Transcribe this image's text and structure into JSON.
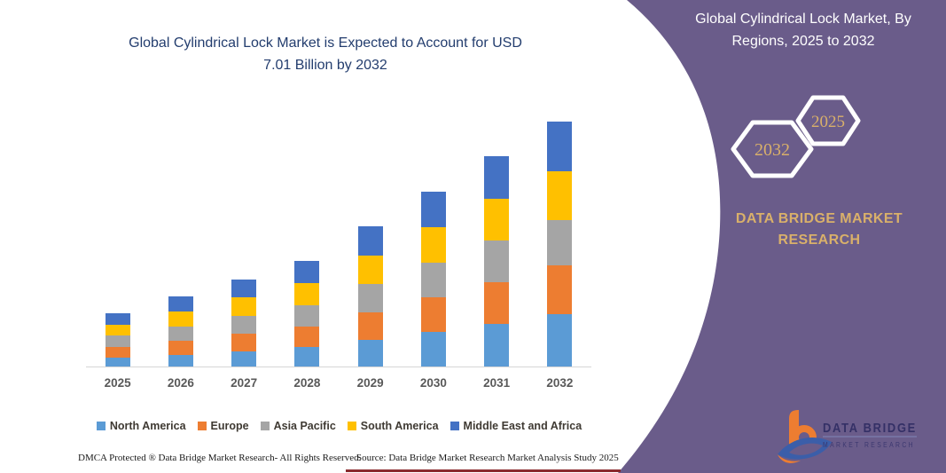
{
  "chart": {
    "title_line1": "Global Cylindrical Lock Market is Expected to Account for USD",
    "title_line2": "7.01 Billion by 2032"
  },
  "chart_data": {
    "type": "bar",
    "stacked": true,
    "title": "Global Cylindrical Lock Market is Expected to Account for USD 7.01 Billion by 2032",
    "units": "USD Billion",
    "categories": [
      "2025",
      "2026",
      "2027",
      "2028",
      "2029",
      "2030",
      "2031",
      "2032"
    ],
    "series": [
      {
        "name": "North America",
        "color": "#5B9BD5",
        "values": [
          0.25,
          0.34,
          0.44,
          0.55,
          0.76,
          0.98,
          1.22,
          1.5
        ]
      },
      {
        "name": "Europe",
        "color": "#ED7D31",
        "values": [
          0.31,
          0.4,
          0.5,
          0.6,
          0.8,
          1.0,
          1.2,
          1.4
        ]
      },
      {
        "name": "Asia Pacific",
        "color": "#A5A5A5",
        "values": [
          0.32,
          0.41,
          0.51,
          0.61,
          0.8,
          1.0,
          1.18,
          1.3
        ]
      },
      {
        "name": "South America",
        "color": "#FFC000",
        "values": [
          0.32,
          0.42,
          0.52,
          0.62,
          0.82,
          1.01,
          1.2,
          1.38
        ]
      },
      {
        "name": "Middle East and Africa",
        "color": "#4472C4",
        "values": [
          0.32,
          0.43,
          0.53,
          0.64,
          0.83,
          1.01,
          1.22,
          1.43
        ]
      }
    ],
    "totals": [
      1.52,
      2.0,
      2.5,
      3.02,
      4.01,
      5.0,
      6.02,
      7.01
    ],
    "xlabel": "",
    "ylabel": "",
    "ylim": [
      0,
      7.01
    ],
    "grid": false,
    "legend_position": "bottom"
  },
  "side_panel": {
    "title": "Global Cylindrical Lock Market, By Regions, 2025 to 2032",
    "hexagon_back_year": "2025",
    "hexagon_front_year": "2032",
    "brand_line1": "DATA BRIDGE MARKET",
    "brand_line2": "RESEARCH",
    "colors": {
      "background": "#6a5c8a",
      "accent_gold": "#D9B06A"
    }
  },
  "logo": {
    "line1": "DATA BRIDGE",
    "line2": "MARKET RESEARCH"
  },
  "footer": {
    "dmca": "DMCA Protected ® Data Bridge Market Research-  All Rights Reserved.",
    "source": "Source: Data Bridge Market Research  Market Analysis Study 2025"
  }
}
